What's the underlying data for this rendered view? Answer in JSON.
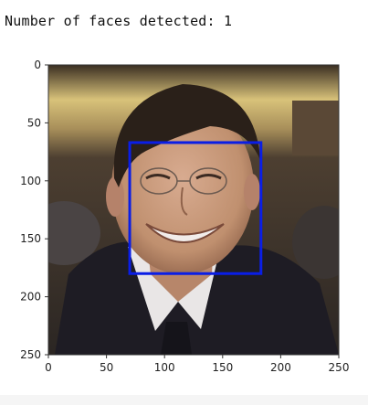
{
  "output": {
    "text": "Number of faces detected: 1"
  },
  "plot": {
    "x_ticks": [
      "0",
      "50",
      "100",
      "150",
      "200",
      "250"
    ],
    "y_ticks": [
      "0",
      "50",
      "100",
      "150",
      "200",
      "250"
    ],
    "image_size": [
      250,
      250
    ],
    "detection_box": {
      "x1": 70,
      "y1": 67,
      "x2": 183,
      "y2": 180
    },
    "box_color": "#0a1ee6"
  },
  "photo_palette": {
    "wall_top": "#3a2e22",
    "wall_light": "#d8c27a",
    "wall_mid": "#6b5740",
    "background_dark": "#2b2623",
    "hair": "#2a2019",
    "skin": "#c99a7e",
    "skin_shadow": "#a47356",
    "suit": "#1e1c24",
    "shirt": "#e9e6e6",
    "tie": "#15141a"
  }
}
